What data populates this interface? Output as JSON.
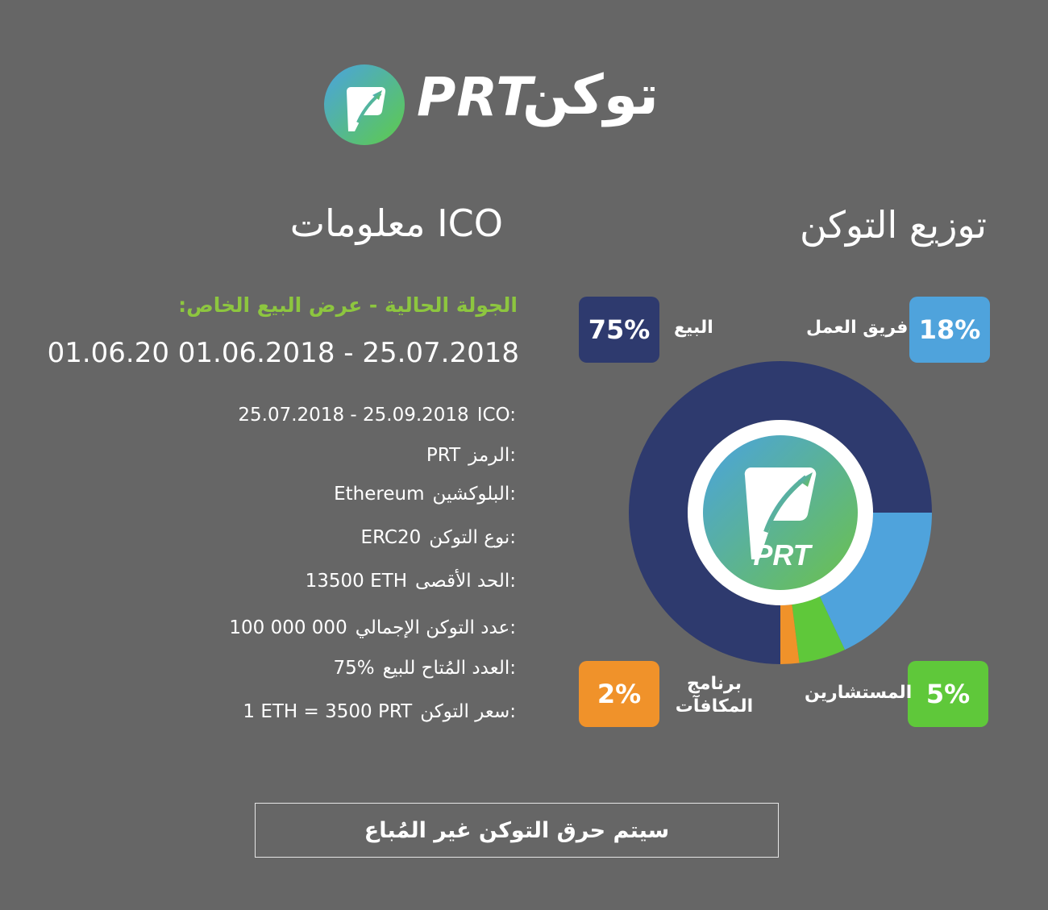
{
  "header": {
    "logo_icon": "prt-leaf-rocket-icon",
    "logo_latin": "PRT",
    "logo_arabic": "توكن"
  },
  "distribution": {
    "title": "توزيع التوكن",
    "items": [
      {
        "label": "البيع",
        "percent_text": "75%",
        "value": 75,
        "color": "#2e3a6e"
      },
      {
        "label": "فريق العمل",
        "percent_text": "18%",
        "value": 18,
        "color": "#4fa3dc"
      },
      {
        "label": "المستشارين",
        "percent_text": "5%",
        "value": 5,
        "color": "#5fc83a"
      },
      {
        "label": "برنامج المكافآت",
        "percent_text": "2%",
        "value": 2,
        "color": "#f0922a"
      }
    ],
    "center_logo_text": "PRT"
  },
  "ico": {
    "title": "معلومات ICO",
    "round_label": "الجولة الحالية - عرض البيع الخاص:",
    "round_dates": "01.06.20  01.06.2018 - 25.07.2018",
    "rows": [
      {
        "label": "ICO:",
        "value": "25.07.2018 - 25.09.2018"
      },
      {
        "label": "الرمز:",
        "value": "PRT"
      },
      {
        "label": "البلوكشين:",
        "value": "Ethereum"
      },
      {
        "label": "نوع التوكن:",
        "value": "ERC20"
      },
      {
        "label": "الحد الأقصى:",
        "value": "13500 ETH"
      },
      {
        "label": "عدد التوكن الإجمالي:",
        "value": "100 000 000"
      },
      {
        "label": "العدد المُتاح للبيع:",
        "value": "75%"
      },
      {
        "label": "سعر التوكن:",
        "value": "1 ETH = 3500 PRT"
      }
    ]
  },
  "footer": {
    "burn_text": "سيتم حرق التوكن غير المُباع"
  },
  "colors": {
    "background": "#666666",
    "accent_green": "#8dc63f",
    "sale": "#2e3a6e",
    "team": "#4fa3dc",
    "advisors": "#5fc83a",
    "bounty": "#f0922a"
  }
}
